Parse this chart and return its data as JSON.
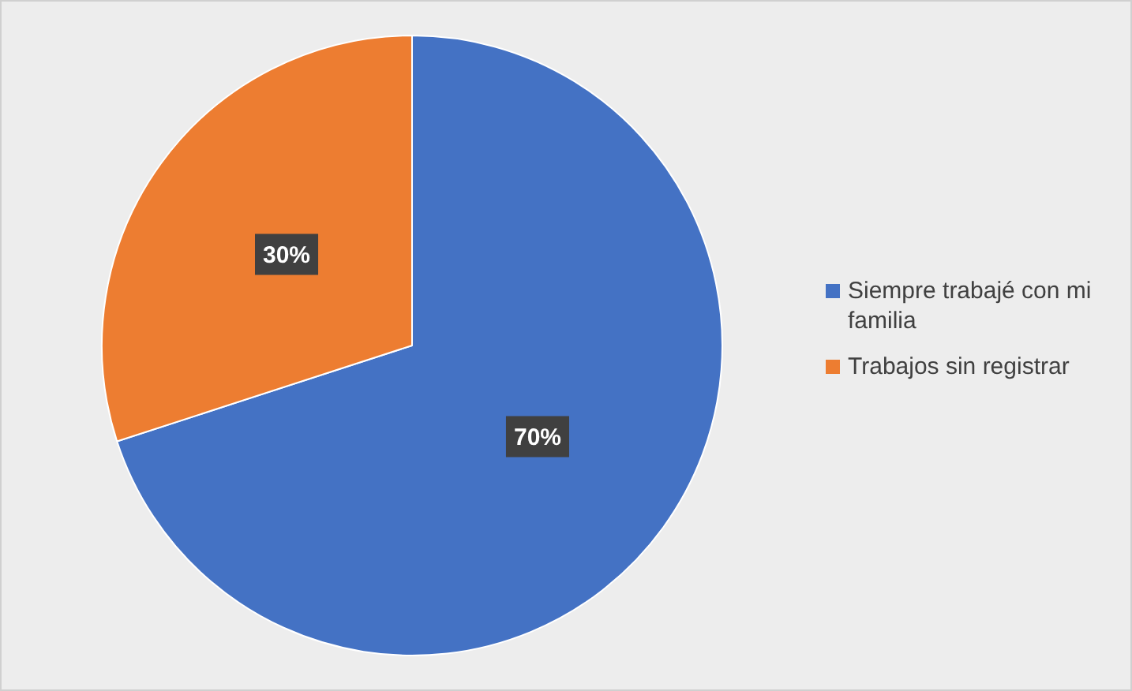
{
  "chart_data": {
    "type": "pie",
    "categories": [
      "Siempre trabajé con mi familia",
      "Trabajos sin registrar"
    ],
    "values": [
      70,
      30
    ],
    "colors": [
      "#4472c4",
      "#ed7d31"
    ],
    "value_labels": [
      "70%",
      "30%"
    ],
    "legend": "right"
  }
}
